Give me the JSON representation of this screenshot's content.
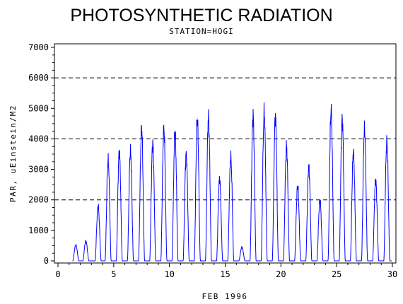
{
  "chart_data": {
    "type": "line",
    "title": "PHOTOSYNTHETIC RADIATION",
    "subtitle": "STATION=HOGI",
    "xlabel": "FEB 1996",
    "ylabel": "PAR, uEinstein/M2",
    "xlim": [
      0,
      30
    ],
    "ylim": [
      0,
      7000
    ],
    "x_ticks": [
      0,
      5,
      10,
      15,
      20,
      25,
      30
    ],
    "y_ticks": [
      0,
      1000,
      2000,
      3000,
      4000,
      5000,
      6000,
      7000
    ],
    "y_tick_labels": [
      "0",
      "1000",
      "2000",
      "3000",
      "4000",
      "5000",
      "6000",
      "7000"
    ],
    "reference_lines": [
      2000,
      4000,
      6000
    ],
    "grid": false,
    "series": [
      {
        "color": "#0000ff",
        "daily_peaks": [
          {
            "day": 1.6,
            "value": 520
          },
          {
            "day": 2.5,
            "value": 650
          },
          {
            "day": 3.6,
            "value": 1800
          },
          {
            "day": 4.5,
            "value": 3300
          },
          {
            "day": 5.5,
            "value": 3600
          },
          {
            "day": 6.5,
            "value": 3600
          },
          {
            "day": 7.5,
            "value": 4350
          },
          {
            "day": 8.5,
            "value": 3850
          },
          {
            "day": 9.5,
            "value": 4350
          },
          {
            "day": 10.5,
            "value": 4250
          },
          {
            "day": 11.5,
            "value": 3500
          },
          {
            "day": 12.5,
            "value": 4650
          },
          {
            "day": 13.5,
            "value": 4700
          },
          {
            "day": 14.5,
            "value": 2700
          },
          {
            "day": 15.5,
            "value": 3400
          },
          {
            "day": 16.5,
            "value": 450
          },
          {
            "day": 17.5,
            "value": 4750
          },
          {
            "day": 18.5,
            "value": 4850
          },
          {
            "day": 19.5,
            "value": 4750
          },
          {
            "day": 20.5,
            "value": 3750
          },
          {
            "day": 21.5,
            "value": 2450
          },
          {
            "day": 22.5,
            "value": 3100
          },
          {
            "day": 23.5,
            "value": 2000
          },
          {
            "day": 24.5,
            "value": 4950
          },
          {
            "day": 25.5,
            "value": 4650
          },
          {
            "day": 26.5,
            "value": 3550
          },
          {
            "day": 27.5,
            "value": 4350
          },
          {
            "day": 28.5,
            "value": 2650
          },
          {
            "day": 29.5,
            "value": 3900
          }
        ]
      }
    ]
  }
}
